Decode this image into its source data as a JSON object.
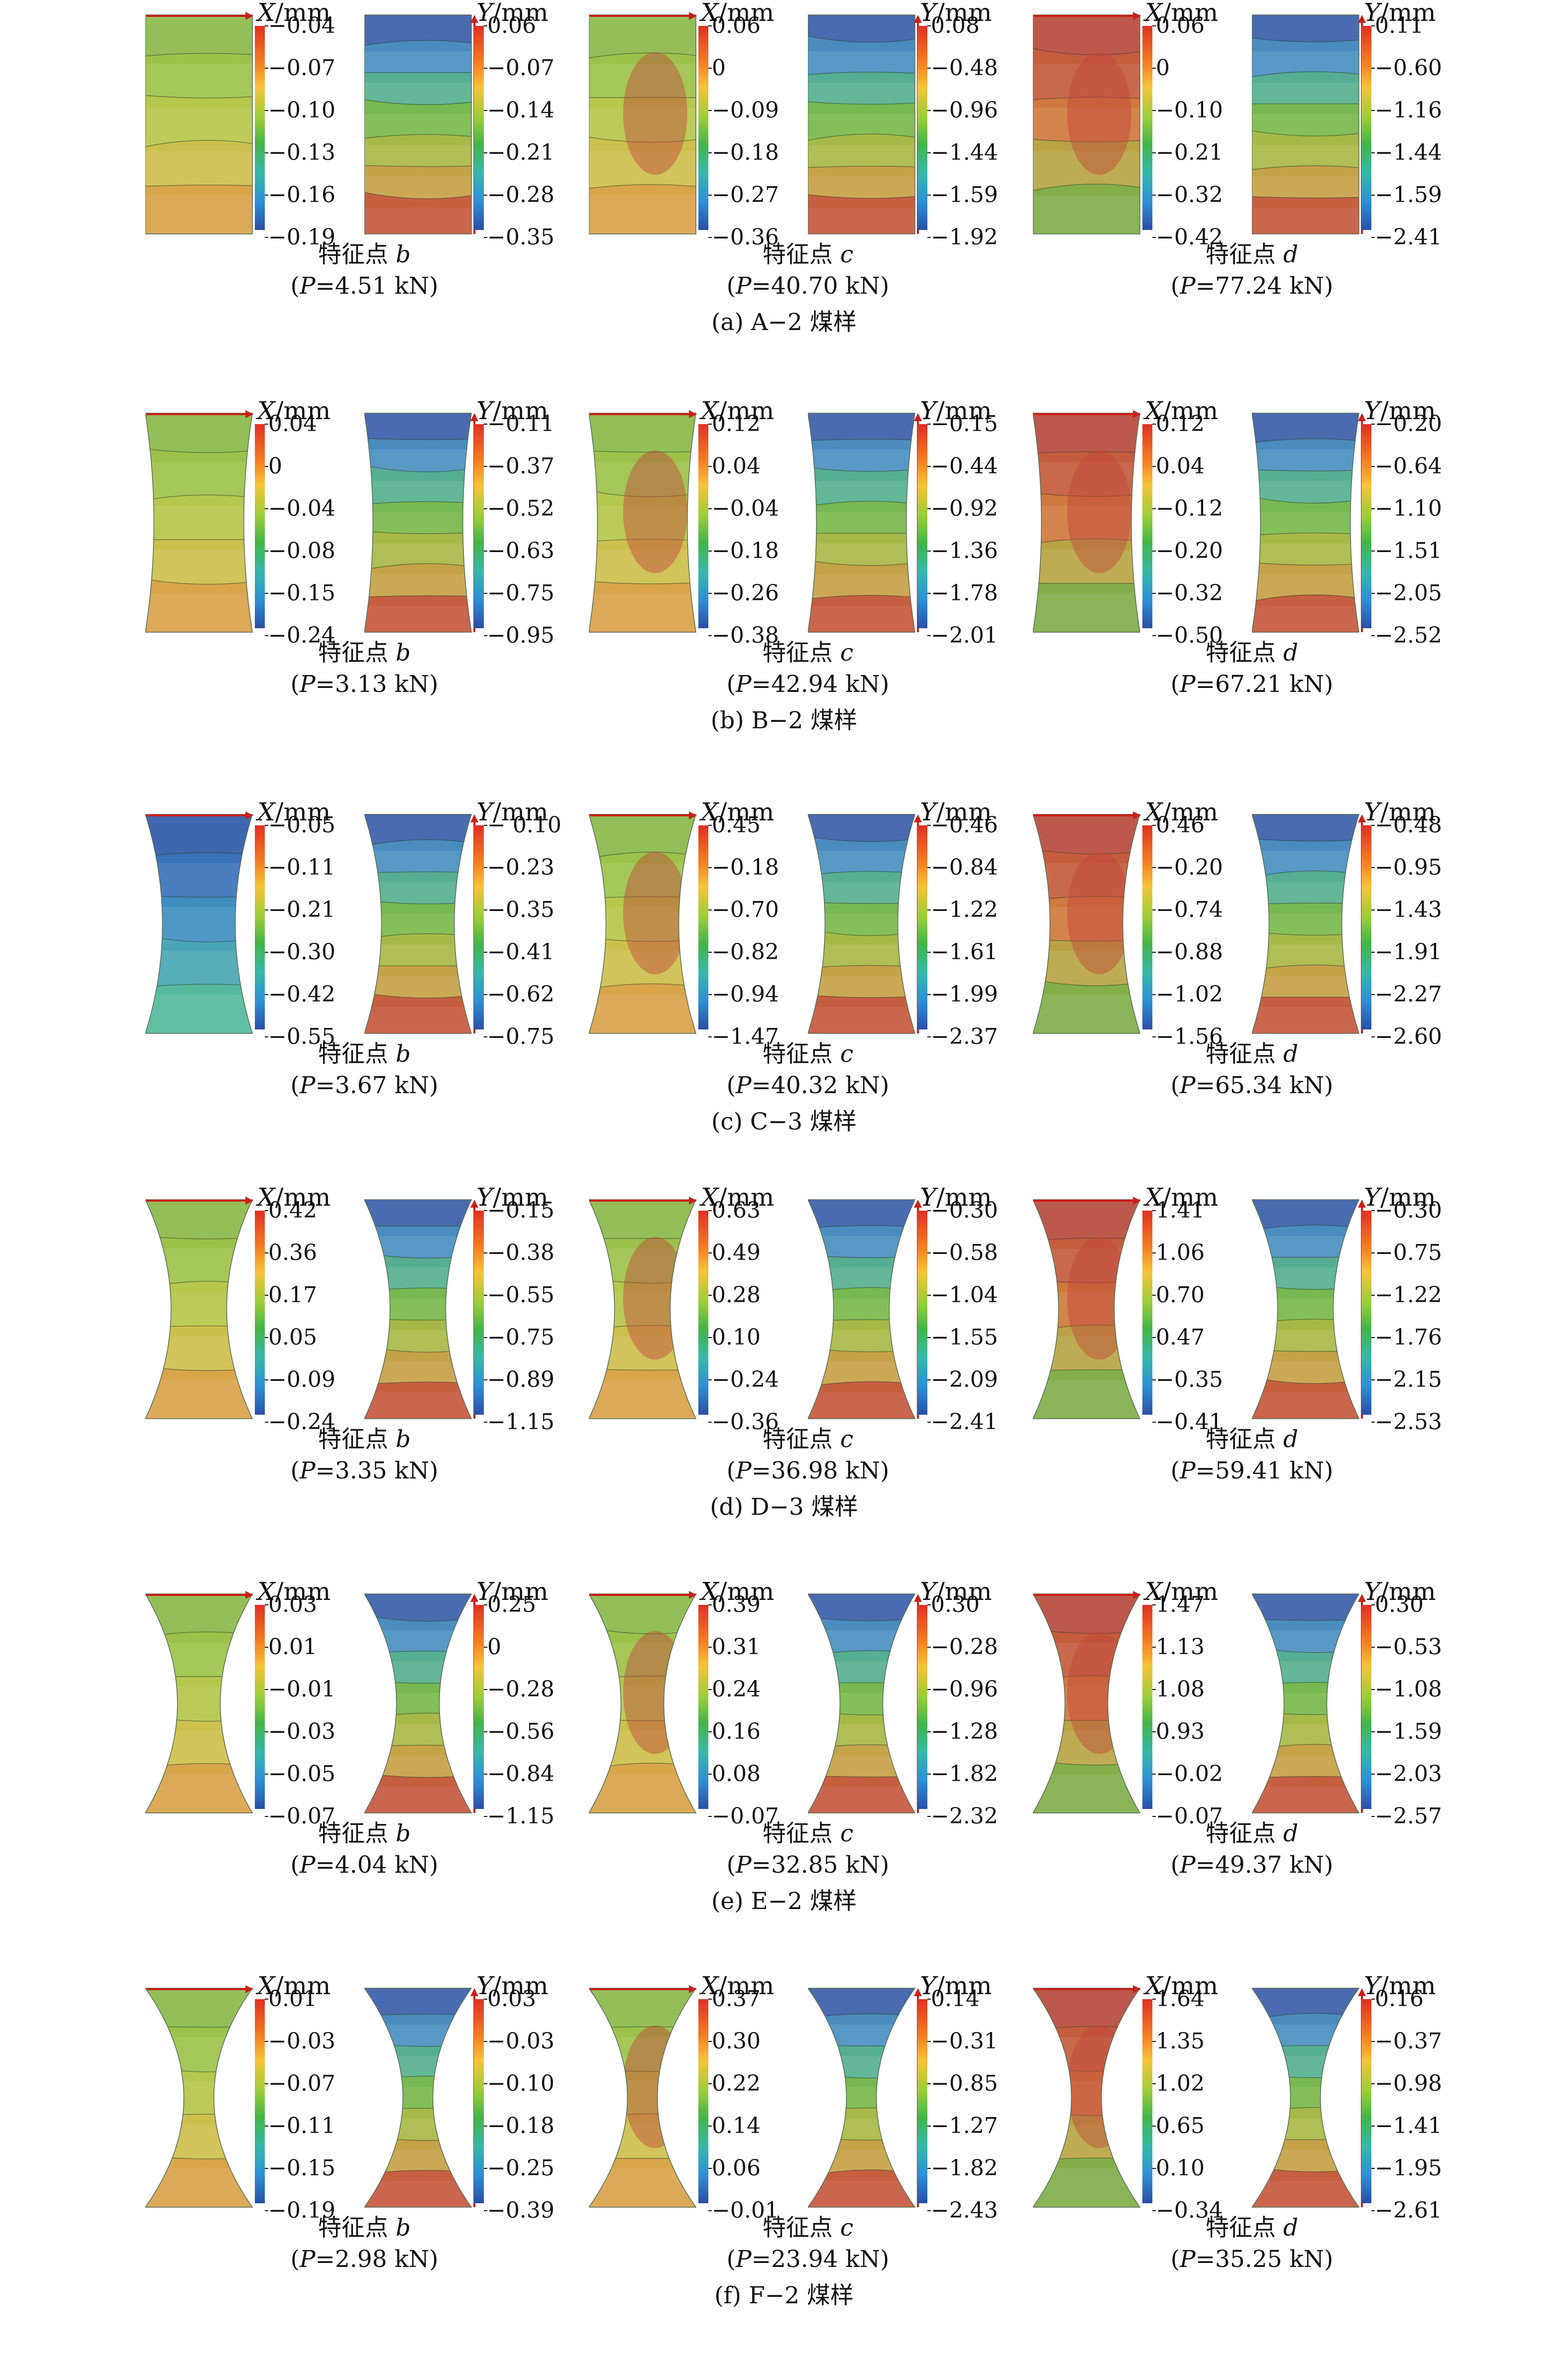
{
  "colors": {
    "accent": "#cc1f1a"
  },
  "rows": [
    {
      "caption": "(a) A−2 煤样",
      "shape": 0,
      "style": "a",
      "panels": [
        {
          "feature": "特征点",
          "point": "b",
          "load_prefix": "P",
          "load_value": "=4.51 kN",
          "x": {
            "axis": "X",
            "unit": "/mm",
            "ticks": [
              "−0.04",
              "−0.07",
              "−0.10",
              "−0.13",
              "−0.16",
              "−0.19"
            ]
          },
          "y": {
            "axis": "Y",
            "unit": "/mm",
            "ticks": [
              "0.06",
              "−0.07",
              "−0.14",
              "−0.21",
              "−0.28",
              "−0.35"
            ]
          }
        },
        {
          "feature": "特征点",
          "point": "c",
          "load_prefix": "P",
          "load_value": "=40.70 kN",
          "x": {
            "axis": "X",
            "unit": "/mm",
            "ticks": [
              "0.06",
              "0",
              "−0.09",
              "−0.18",
              "−0.27",
              "−0.36"
            ]
          },
          "y": {
            "axis": "Y",
            "unit": "/mm",
            "ticks": [
              "0.08",
              "−0.48",
              "−0.96",
              "−1.44",
              "−1.59",
              "−1.92"
            ]
          }
        },
        {
          "feature": "特征点",
          "point": "d",
          "load_prefix": "P",
          "load_value": "=77.24 kN",
          "x": {
            "axis": "X",
            "unit": "/mm",
            "ticks": [
              "0.06",
              "0",
              "−0.10",
              "−0.21",
              "−0.32",
              "−0.42"
            ]
          },
          "y": {
            "axis": "Y",
            "unit": "/mm",
            "ticks": [
              "0.11",
              "−0.60",
              "−1.16",
              "−1.44",
              "−1.59",
              "−2.41"
            ]
          }
        }
      ]
    },
    {
      "caption": "(b) B−2 煤样",
      "shape": 0.08,
      "style": "b",
      "panels": [
        {
          "feature": "特征点",
          "point": "b",
          "load_prefix": "P",
          "load_value": "=3.13 kN",
          "x": {
            "axis": "X",
            "unit": "/mm",
            "ticks": [
              "0.04",
              "0",
              "−0.04",
              "−0.08",
              "−0.15",
              "−0.24"
            ]
          },
          "y": {
            "axis": "Y",
            "unit": "/mm",
            "ticks": [
              "−0.11",
              "−0.37",
              "−0.52",
              "−0.63",
              "−0.75",
              "−0.95"
            ]
          }
        },
        {
          "feature": "特征点",
          "point": "c",
          "load_prefix": "P",
          "load_value": "=42.94 kN",
          "x": {
            "axis": "X",
            "unit": "/mm",
            "ticks": [
              "0.12",
              "0.04",
              "−0.04",
              "−0.18",
              "−0.26",
              "−0.38"
            ]
          },
          "y": {
            "axis": "Y",
            "unit": "/mm",
            "ticks": [
              "−0.15",
              "−0.44",
              "−0.92",
              "−1.36",
              "−1.78",
              "−2.01"
            ]
          }
        },
        {
          "feature": "特征点",
          "point": "d",
          "load_prefix": "P",
          "load_value": "=67.21 kN",
          "x": {
            "axis": "X",
            "unit": "/mm",
            "ticks": [
              "0.12",
              "0.04",
              "−0.12",
              "−0.20",
              "−0.32",
              "−0.50"
            ]
          },
          "y": {
            "axis": "Y",
            "unit": "/mm",
            "ticks": [
              "−0.20",
              "−0.64",
              "−1.10",
              "−1.51",
              "−2.05",
              "−2.52"
            ]
          }
        }
      ]
    },
    {
      "caption": "(c) C−3 煤样",
      "shape": 0.16,
      "style": "c",
      "panels": [
        {
          "feature": "特征点",
          "point": "b",
          "load_prefix": "P",
          "load_value": "=3.67 kN",
          "x": {
            "axis": "X",
            "unit": "/mm",
            "ticks": [
              "−0.05",
              "−0.11",
              "−0.21",
              "−0.30",
              "−0.42",
              "−0.55"
            ]
          },
          "y": {
            "axis": "Y",
            "unit": "/mm",
            "ticks": [
              "− 0.10",
              "−0.23",
              "−0.35",
              "−0.41",
              "−0.62",
              "−0.75"
            ]
          }
        },
        {
          "feature": "特征点",
          "point": "c",
          "load_prefix": "P",
          "load_value": "=40.32 kN",
          "x": {
            "axis": "X",
            "unit": "/mm",
            "ticks": [
              "0.45",
              "−0.18",
              "−0.70",
              "−0.82",
              "−0.94",
              "−1.47"
            ]
          },
          "y": {
            "axis": "Y",
            "unit": "/mm",
            "ticks": [
              "−0.46",
              "−0.84",
              "−1.22",
              "−1.61",
              "−1.99",
              "−2.37"
            ]
          }
        },
        {
          "feature": "特征点",
          "point": "d",
          "load_prefix": "P",
          "load_value": "=65.34 kN",
          "x": {
            "axis": "X",
            "unit": "/mm",
            "ticks": [
              "0.46",
              "−0.20",
              "−0.74",
              "−0.88",
              "−1.02",
              "−1.56"
            ]
          },
          "y": {
            "axis": "Y",
            "unit": "/mm",
            "ticks": [
              "−0.48",
              "−0.95",
              "−1.43",
              "−1.91",
              "−2.27",
              "−2.60"
            ]
          }
        }
      ]
    },
    {
      "caption": "(d) D−3 煤样",
      "shape": 0.24,
      "style": "d",
      "panels": [
        {
          "feature": "特征点",
          "point": "b",
          "load_prefix": "P",
          "load_value": "=3.35 kN",
          "x": {
            "axis": "X",
            "unit": "/mm",
            "ticks": [
              "0.42",
              "0.36",
              "0.17",
              "0.05",
              "−0.09",
              "−0.24"
            ]
          },
          "y": {
            "axis": "Y",
            "unit": "/mm",
            "ticks": [
              "−0.15",
              "−0.38",
              "−0.55",
              "−0.75",
              "−0.89",
              "−1.15"
            ]
          }
        },
        {
          "feature": "特征点",
          "point": "c",
          "load_prefix": "P",
          "load_value": "=36.98 kN",
          "x": {
            "axis": "X",
            "unit": "/mm",
            "ticks": [
              "0.63",
              "0.49",
              "0.28",
              "0.10",
              "−0.24",
              "−0.36"
            ]
          },
          "y": {
            "axis": "Y",
            "unit": "/mm",
            "ticks": [
              "−0.30",
              "−0.58",
              "−1.04",
              "−1.55",
              "−2.09",
              "−2.41"
            ]
          }
        },
        {
          "feature": "特征点",
          "point": "d",
          "load_prefix": "P",
          "load_value": "=59.41 kN",
          "x": {
            "axis": "X",
            "unit": "/mm",
            "ticks": [
              "1.41",
              "1.06",
              "0.70",
              "0.47",
              "−0.35",
              "−0.41"
            ]
          },
          "y": {
            "axis": "Y",
            "unit": "/mm",
            "ticks": [
              "−0.30",
              "−0.75",
              "−1.22",
              "−1.76",
              "−2.15",
              "−2.53"
            ]
          }
        }
      ]
    },
    {
      "caption": "(e) E−2 煤样",
      "shape": 0.3,
      "style": "e",
      "panels": [
        {
          "feature": "特征点",
          "point": "b",
          "load_prefix": "P",
          "load_value": "=4.04 kN",
          "x": {
            "axis": "X",
            "unit": "/mm",
            "ticks": [
              "0.03",
              "0.01",
              "−0.01",
              "−0.03",
              "−0.05",
              "−0.07"
            ]
          },
          "y": {
            "axis": "Y",
            "unit": "/mm",
            "ticks": [
              "0.25",
              "0",
              "−0.28",
              "−0.56",
              "−0.84",
              "−1.15"
            ]
          }
        },
        {
          "feature": "特征点",
          "point": "c",
          "load_prefix": "P",
          "load_value": "=32.85 kN",
          "x": {
            "axis": "X",
            "unit": "/mm",
            "ticks": [
              "0.39",
              "0.31",
              "0.24",
              "0.16",
              "0.08",
              "−0.07"
            ]
          },
          "y": {
            "axis": "Y",
            "unit": "/mm",
            "ticks": [
              "0.30",
              "−0.28",
              "−0.96",
              "−1.28",
              "−1.82",
              "−2.32"
            ]
          }
        },
        {
          "feature": "特征点",
          "point": "d",
          "load_prefix": "P",
          "load_value": "=49.37 kN",
          "x": {
            "axis": "X",
            "unit": "/mm",
            "ticks": [
              "1.47",
              "1.13",
              "1.08",
              "0.93",
              "−0.02",
              "−0.07"
            ]
          },
          "y": {
            "axis": "Y",
            "unit": "/mm",
            "ticks": [
              "0.30",
              "−0.53",
              "−1.08",
              "−1.59",
              "−2.03",
              "−2.57"
            ]
          }
        }
      ]
    },
    {
      "caption": "(f) F−2 煤样",
      "shape": 0.36,
      "style": "f",
      "panels": [
        {
          "feature": "特征点",
          "point": "b",
          "load_prefix": "P",
          "load_value": "=2.98 kN",
          "x": {
            "axis": "X",
            "unit": "/mm",
            "ticks": [
              "0.01",
              "−0.03",
              "−0.07",
              "−0.11",
              "−0.15",
              "−0.19"
            ]
          },
          "y": {
            "axis": "Y",
            "unit": "/mm",
            "ticks": [
              "0.03",
              "−0.03",
              "−0.10",
              "−0.18",
              "−0.25",
              "−0.39"
            ]
          }
        },
        {
          "feature": "特征点",
          "point": "c",
          "load_prefix": "P",
          "load_value": "=23.94 kN",
          "x": {
            "axis": "X",
            "unit": "/mm",
            "ticks": [
              "0.37",
              "0.30",
              "0.22",
              "0.14",
              "0.06",
              "−0.01"
            ]
          },
          "y": {
            "axis": "Y",
            "unit": "/mm",
            "ticks": [
              "0.14",
              "−0.31",
              "−0.85",
              "−1.27",
              "−1.82",
              "−2.43"
            ]
          }
        },
        {
          "feature": "特征点",
          "point": "d",
          "load_prefix": "P",
          "load_value": "=35.25 kN",
          "x": {
            "axis": "X",
            "unit": "/mm",
            "ticks": [
              "1.64",
              "1.35",
              "1.02",
              "0.65",
              "0.10",
              "−0.34"
            ]
          },
          "y": {
            "axis": "Y",
            "unit": "/mm",
            "ticks": [
              "0.16",
              "−0.37",
              "−0.98",
              "−1.41",
              "−1.95",
              "−2.61"
            ]
          }
        }
      ]
    }
  ]
}
